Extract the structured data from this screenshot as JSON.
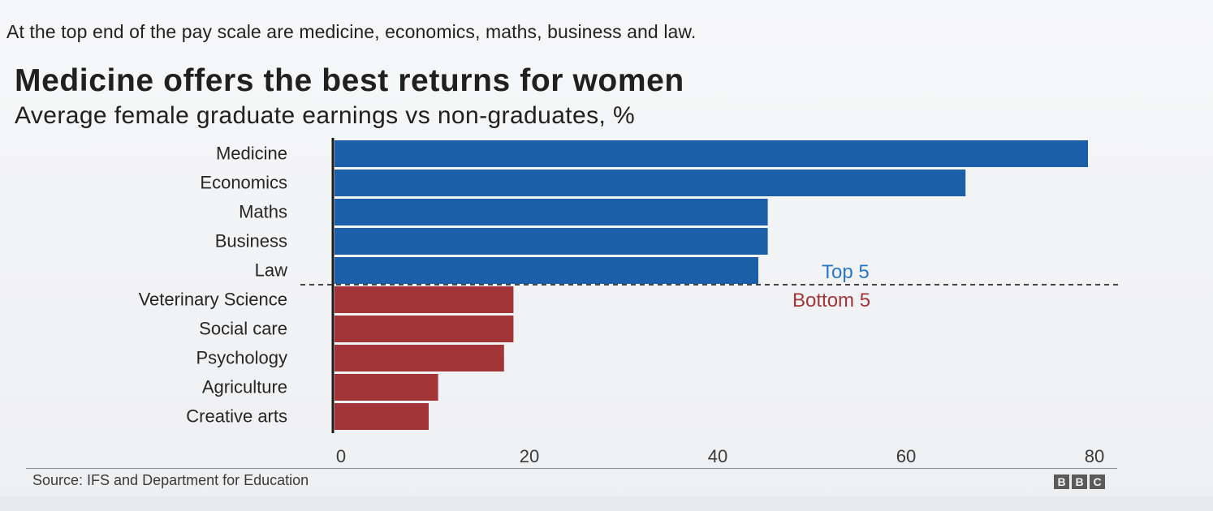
{
  "intro": "At the top end of the pay scale are medicine, economics, maths, business and law.",
  "header": {
    "title": "Medicine offers the best returns for women",
    "subtitle": "Average female graduate earnings vs non-graduates, %"
  },
  "footer": {
    "source": "Source: IFS and Department for Education",
    "logo_letters": [
      "B",
      "B",
      "C"
    ]
  },
  "colors": {
    "top": "#1a5fa8",
    "bottom": "#a33538",
    "top_label": "#2a77c9",
    "bottom_label": "#a33538"
  },
  "chart_data": {
    "type": "bar",
    "orientation": "horizontal",
    "categories": [
      "Medicine",
      "Economics",
      "Maths",
      "Business",
      "Law",
      "Veterinary Science",
      "Social care",
      "Psychology",
      "Agriculture",
      "Creative arts"
    ],
    "values": [
      80,
      67,
      46,
      46,
      45,
      19,
      19,
      18,
      11,
      10
    ],
    "groups": [
      "top",
      "top",
      "top",
      "top",
      "top",
      "bottom",
      "bottom",
      "bottom",
      "bottom",
      "bottom"
    ],
    "group_labels": {
      "top": "Top 5",
      "bottom": "Bottom 5"
    },
    "xticks": [
      0,
      20,
      40,
      60,
      80
    ],
    "xlim": [
      0,
      80
    ],
    "grid": false,
    "legend": "none"
  }
}
